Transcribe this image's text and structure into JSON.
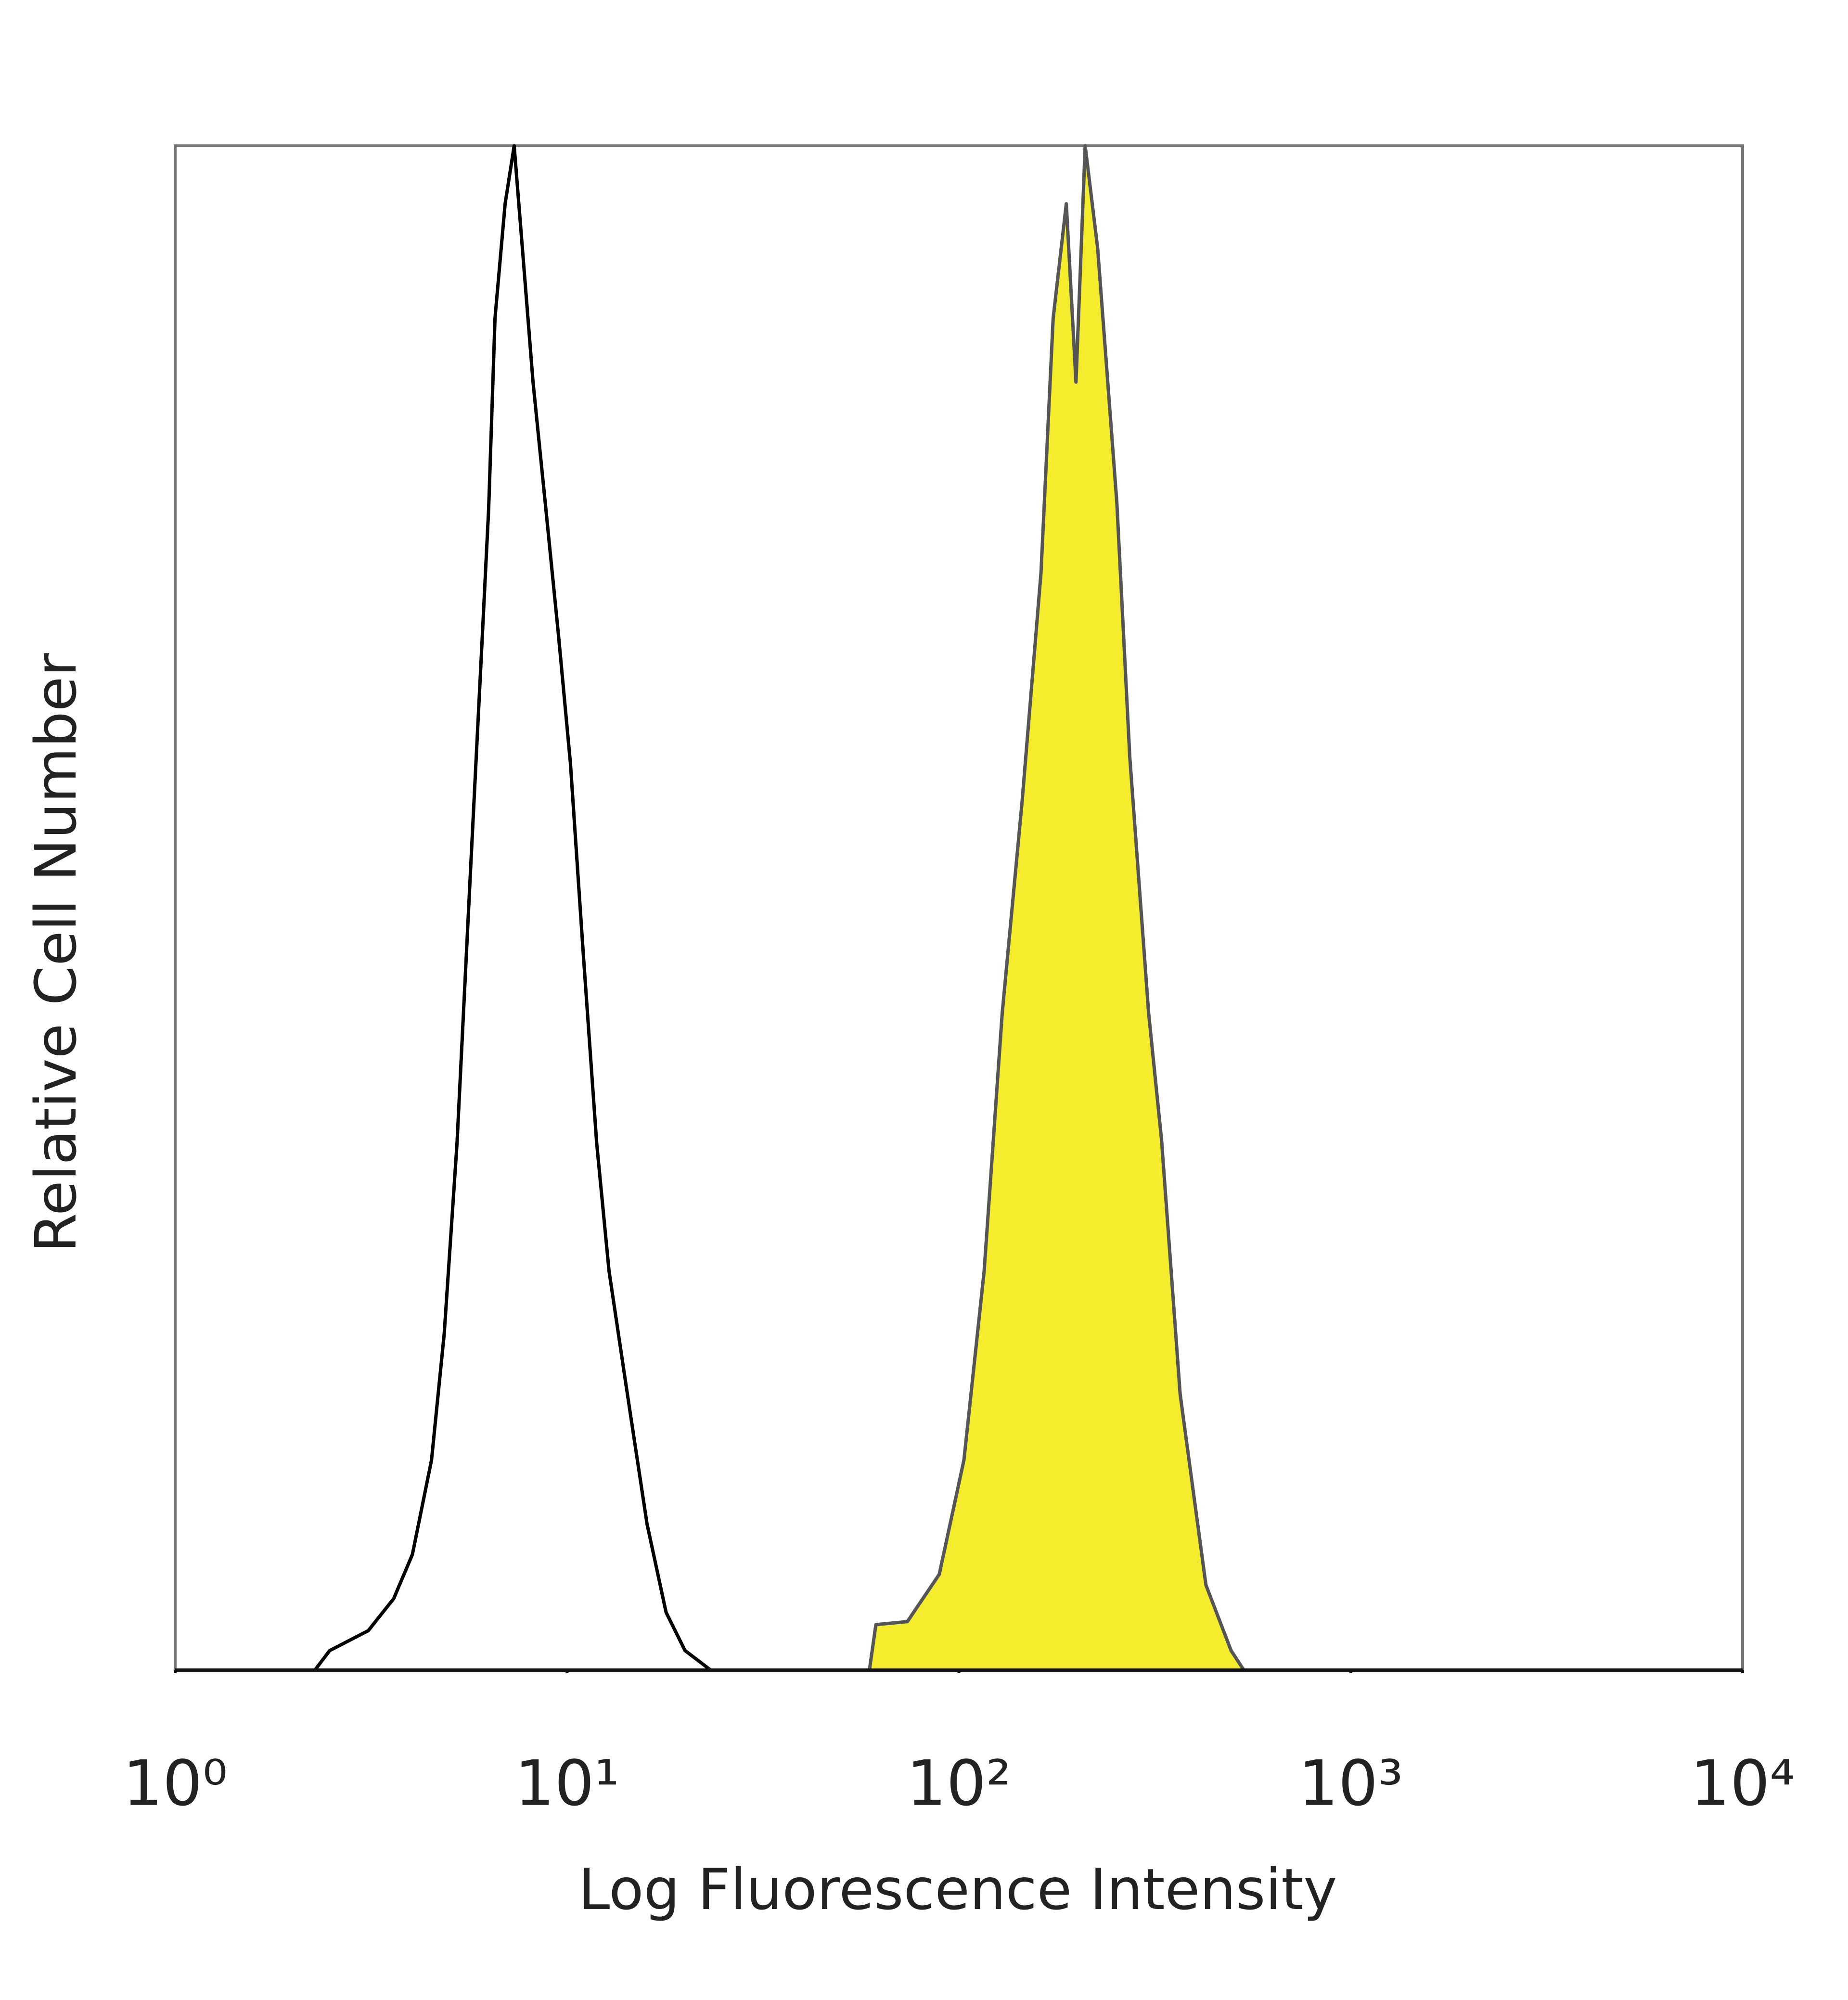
{
  "chart_data": {
    "type": "histogram-overlay",
    "x_label": "Log Fluorescence Intensity",
    "y_label": "Relative Cell Number",
    "xscale": "log",
    "xlim": [
      1,
      10000
    ],
    "xticks": [
      {
        "value": 1,
        "label": "10⁰"
      },
      {
        "value": 10,
        "label": "10¹"
      },
      {
        "value": 100,
        "label": "10²"
      },
      {
        "value": 1000,
        "label": "10³"
      },
      {
        "value": 10000,
        "label": "10⁴"
      }
    ],
    "ylim": [
      0,
      100
    ],
    "series": [
      {
        "color": "#000000",
        "fill": "none",
        "x": [
          2.27,
          2.48,
          3.11,
          3.61,
          4.03,
          4.51,
          4.86,
          5.24,
          5.64,
          6.08,
          6.31,
          6.55,
          6.95,
          7.33,
          7.72,
          8.19,
          8.83,
          9.51,
          10.2,
          11.0,
          11.9,
          12.8,
          14.3,
          16.0,
          17.9,
          20.0,
          23.3
        ],
        "values": [
          0,
          1.3,
          2.6,
          4.7,
          7.6,
          13.8,
          22.1,
          34.6,
          51.2,
          67.9,
          76.2,
          88.7,
          96.2,
          100,
          92.8,
          84.5,
          76.2,
          67.9,
          59.5,
          47.0,
          34.6,
          26.2,
          17.9,
          9.6,
          3.8,
          1.3,
          0
        ]
      },
      {
        "color": "#555555",
        "fill": "#f5ec2e",
        "x": [
          59.1,
          61.4,
          73.9,
          89.1,
          103,
          116,
          129,
          145,
          162,
          174,
          188,
          199,
          210,
          226,
          253,
          273,
          305,
          329,
          367,
          427,
          495,
          534
        ],
        "values": [
          0,
          3.0,
          3.2,
          6.3,
          13.8,
          26.2,
          43.1,
          57.0,
          72.0,
          88.7,
          96.2,
          84.5,
          100,
          93.3,
          76.6,
          59.9,
          43.1,
          34.8,
          18.1,
          5.6,
          1.3,
          0
        ]
      }
    ]
  }
}
